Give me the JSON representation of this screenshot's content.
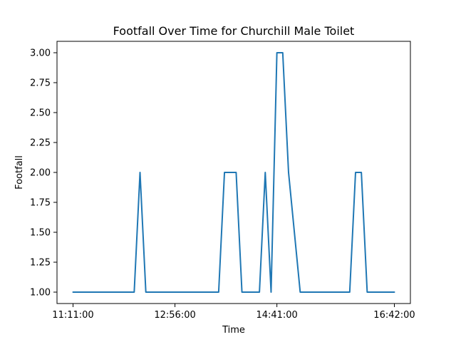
{
  "chart_data": {
    "type": "line",
    "title": "Footfall Over Time for Churchill Male Toilet",
    "xlabel": "Time",
    "ylabel": "Footfall",
    "x_ticks": [
      "11:11:00",
      "12:56:00",
      "14:41:00",
      "16:42:00"
    ],
    "y_ticks": [
      "1.00",
      "1.25",
      "1.50",
      "1.75",
      "2.00",
      "2.25",
      "2.50",
      "2.75",
      "3.00"
    ],
    "xlim": [
      "11:11:00",
      "16:42:00"
    ],
    "ylim": [
      1.0,
      3.0
    ],
    "grid": false,
    "series": [
      {
        "color": "#1f77b4",
        "x": [
          "11:11:00",
          "12:14:00",
          "12:20:00",
          "12:26:00",
          "13:41:00",
          "13:47:00",
          "13:59:00",
          "14:05:00",
          "14:23:00",
          "14:29:00",
          "14:35:00",
          "14:41:00",
          "14:47:00",
          "14:53:00",
          "15:05:00",
          "15:11:00",
          "15:56:00",
          "16:02:00",
          "16:08:00",
          "16:14:00",
          "16:42:00"
        ],
        "y": [
          1,
          1,
          2,
          1,
          1,
          2,
          2,
          1,
          1,
          2,
          1,
          3,
          3,
          2,
          1,
          1,
          1,
          2,
          2,
          1,
          1
        ]
      }
    ]
  }
}
